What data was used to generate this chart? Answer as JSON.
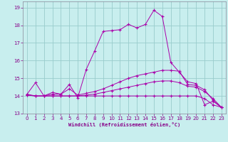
{
  "xlabel": "Windchill (Refroidissement éolien,°C)",
  "bg_color": "#c8eeee",
  "grid_color": "#99cccc",
  "line_color": "#aa00aa",
  "xlim": [
    -0.5,
    23.5
  ],
  "ylim": [
    13.0,
    19.35
  ],
  "yticks": [
    13,
    14,
    15,
    16,
    17,
    18,
    19
  ],
  "xticks": [
    0,
    1,
    2,
    3,
    4,
    5,
    6,
    7,
    8,
    9,
    10,
    11,
    12,
    13,
    14,
    15,
    16,
    17,
    18,
    19,
    20,
    21,
    22,
    23
  ],
  "line1_x": [
    0,
    1,
    2,
    3,
    4,
    5,
    6,
    7,
    8,
    9,
    10,
    11,
    12,
    13,
    14,
    15,
    16,
    17,
    18,
    19,
    20,
    21,
    22,
    23
  ],
  "line1_y": [
    14.1,
    14.75,
    14.0,
    14.2,
    14.1,
    14.65,
    13.9,
    15.5,
    16.55,
    17.65,
    17.7,
    17.75,
    18.05,
    17.85,
    18.05,
    18.85,
    18.5,
    15.9,
    15.35,
    14.8,
    14.7,
    13.5,
    13.7,
    13.35
  ],
  "line2_x": [
    0,
    1,
    2,
    3,
    4,
    5,
    6,
    7,
    8,
    9,
    10,
    11,
    12,
    13,
    14,
    15,
    16,
    17,
    18,
    19,
    20,
    21,
    22,
    23
  ],
  "line2_y": [
    14.05,
    14.0,
    14.0,
    14.1,
    14.1,
    14.4,
    14.05,
    14.15,
    14.25,
    14.4,
    14.6,
    14.8,
    15.0,
    15.15,
    15.25,
    15.35,
    15.45,
    15.45,
    15.4,
    14.65,
    14.6,
    14.35,
    13.75,
    13.35
  ],
  "line3_x": [
    0,
    1,
    2,
    3,
    4,
    5,
    6,
    7,
    8,
    9,
    10,
    11,
    12,
    13,
    14,
    15,
    16,
    17,
    18,
    19,
    20,
    21,
    22,
    23
  ],
  "line3_y": [
    14.05,
    14.0,
    14.0,
    14.0,
    14.0,
    14.0,
    14.0,
    14.05,
    14.1,
    14.2,
    14.3,
    14.4,
    14.5,
    14.6,
    14.7,
    14.8,
    14.85,
    14.85,
    14.75,
    14.55,
    14.5,
    14.25,
    13.85,
    13.35
  ],
  "line4_x": [
    0,
    1,
    2,
    3,
    4,
    5,
    6,
    7,
    8,
    9,
    10,
    11,
    12,
    13,
    14,
    15,
    16,
    17,
    18,
    19,
    20,
    21,
    22,
    23
  ],
  "line4_y": [
    14.1,
    14.0,
    14.0,
    14.0,
    14.0,
    14.0,
    14.0,
    14.0,
    14.0,
    14.0,
    14.0,
    14.0,
    14.0,
    14.0,
    14.0,
    14.0,
    14.0,
    14.0,
    14.0,
    14.0,
    14.0,
    13.85,
    13.5,
    13.35
  ]
}
